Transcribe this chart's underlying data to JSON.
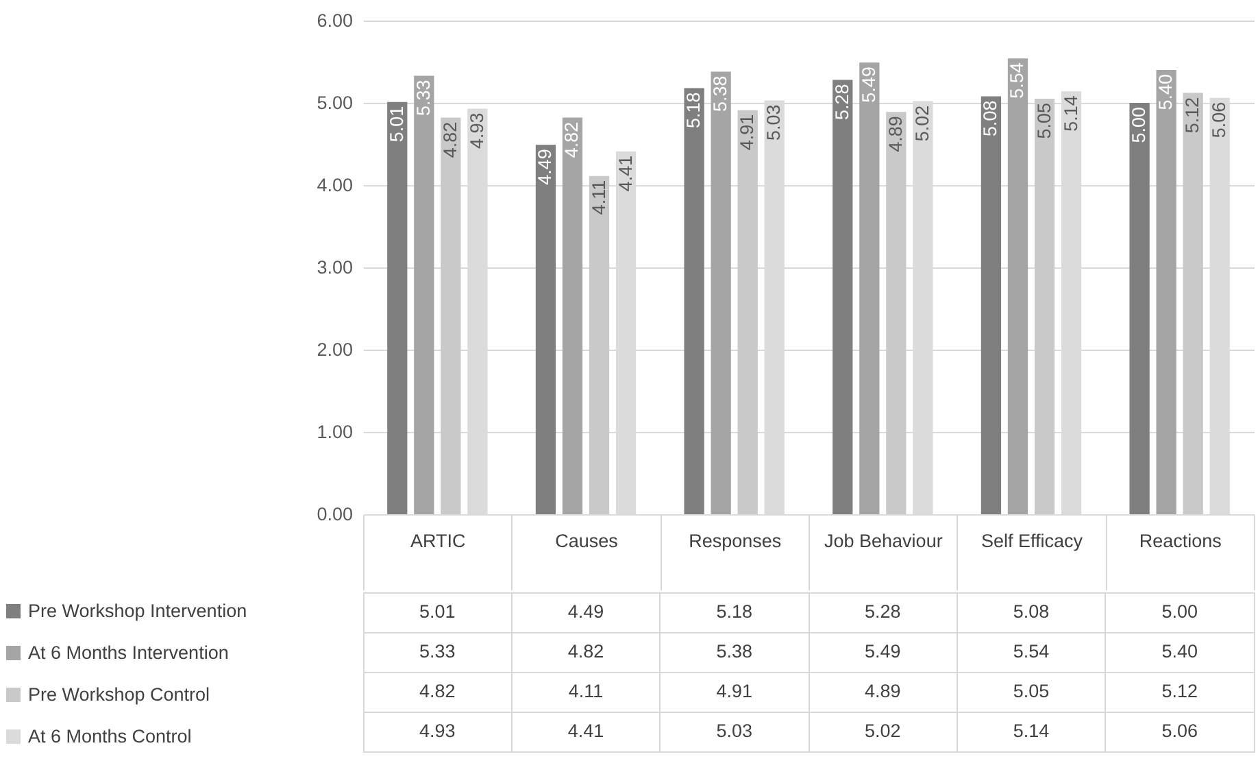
{
  "chart_data": {
    "type": "bar",
    "categories": [
      "ARTIC",
      "Causes",
      "Responses",
      "Job Behaviour",
      "Self Efficacy",
      "Reactions"
    ],
    "series": [
      {
        "name": "Pre Workshop Intervention",
        "color": "#7f7f7f",
        "values": [
          5.01,
          4.49,
          5.18,
          5.28,
          5.08,
          5.0
        ],
        "value_labels": [
          "5.01",
          "4.49",
          "5.18",
          "5.28",
          "5.08",
          "5.00"
        ]
      },
      {
        "name": "At 6 Months Intervention",
        "color": "#a5a5a5",
        "values": [
          5.33,
          4.82,
          5.38,
          5.49,
          5.54,
          5.4
        ],
        "value_labels": [
          "5.33",
          "4.82",
          "5.38",
          "5.49",
          "5.54",
          "5.40"
        ]
      },
      {
        "name": "Pre Workshop Control",
        "color": "#c9c9c9",
        "values": [
          4.82,
          4.11,
          4.91,
          4.89,
          5.05,
          5.12
        ],
        "value_labels": [
          "4.82",
          "4.11",
          "4.91",
          "4.89",
          "5.05",
          "5.12"
        ]
      },
      {
        "name": "At 6 Months Control",
        "color": "#dbdbdb",
        "values": [
          4.93,
          4.41,
          5.03,
          5.02,
          5.14,
          5.06
        ],
        "value_labels": [
          "4.93",
          "4.41",
          "5.03",
          "5.02",
          "5.14",
          "5.06"
        ]
      }
    ],
    "ylim": [
      0,
      6
    ],
    "yticks": [
      {
        "value": 0,
        "label": "0.00"
      },
      {
        "value": 1,
        "label": "1.00"
      },
      {
        "value": 2,
        "label": "2.00"
      },
      {
        "value": 3,
        "label": "3.00"
      },
      {
        "value": 4,
        "label": "4.00"
      },
      {
        "value": 5,
        "label": "5.00"
      },
      {
        "value": 6,
        "label": "6.00"
      }
    ],
    "grid": "y",
    "legend": "bottom left"
  }
}
